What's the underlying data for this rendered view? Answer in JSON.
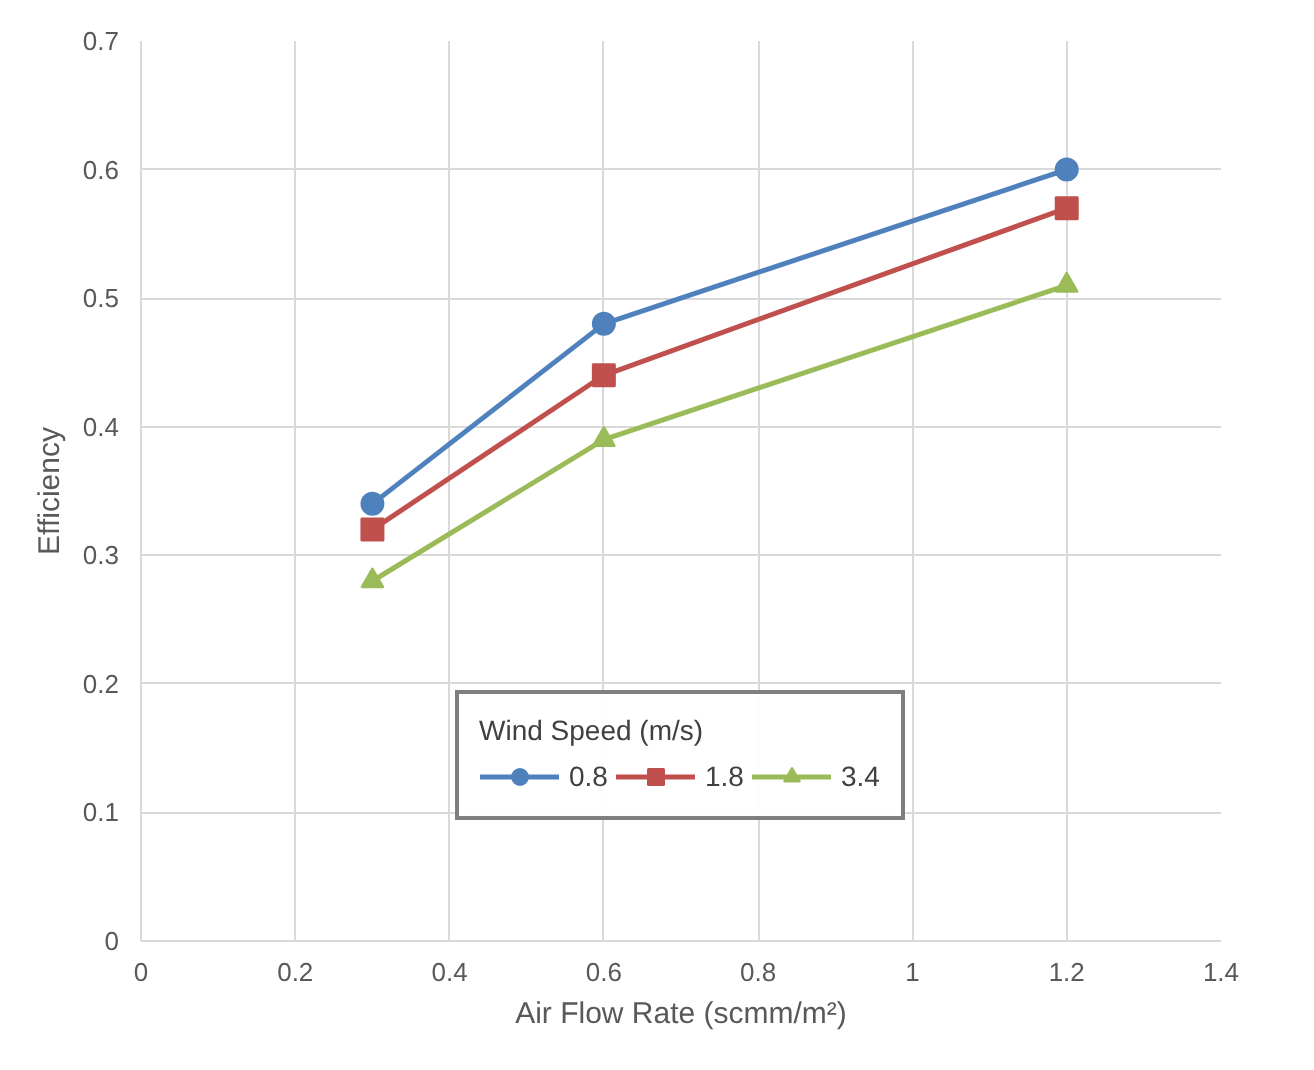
{
  "chart_data": {
    "type": "line",
    "xlabel": "Air Flow Rate (scmm/m²)",
    "ylabel": "Efficiency",
    "legend_title": "Wind Speed (m/s)",
    "x": [
      0.3,
      0.6,
      1.2
    ],
    "series": [
      {
        "name": "0.8",
        "color": "#4f81bd",
        "marker": "circle",
        "values": [
          0.34,
          0.48,
          0.6
        ]
      },
      {
        "name": "1.8",
        "color": "#c0504d",
        "marker": "square",
        "values": [
          0.32,
          0.44,
          0.57
        ]
      },
      {
        "name": "3.4",
        "color": "#9bbb59",
        "marker": "triangle",
        "values": [
          0.28,
          0.39,
          0.51
        ]
      }
    ],
    "xlim": [
      0,
      1.4
    ],
    "xticks": [
      0,
      0.2,
      0.4,
      0.6,
      0.8,
      1,
      1.2,
      1.4
    ],
    "ylim": [
      0,
      0.7
    ],
    "yticks": [
      0,
      0.1,
      0.2,
      0.3,
      0.4,
      0.5,
      0.6,
      0.7
    ],
    "grid": true,
    "legend": "bottom",
    "line_style": "solid"
  }
}
